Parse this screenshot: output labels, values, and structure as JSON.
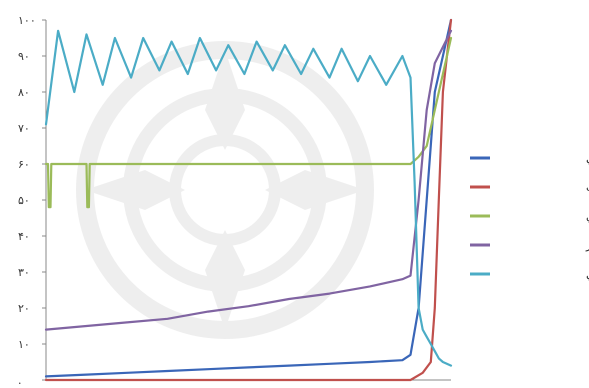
{
  "chart_data": {
    "type": "line",
    "title": "",
    "xlabel": "",
    "ylabel": "",
    "ylim": [
      0,
      100
    ],
    "y_ticks": [
      {
        "value": 0,
        "label": "."
      },
      {
        "value": 10,
        "label": "۱۰"
      },
      {
        "value": 20,
        "label": "۲۰"
      },
      {
        "value": 30,
        "label": "۳۰"
      },
      {
        "value": 40,
        "label": "۴۰"
      },
      {
        "value": 50,
        "label": "۵۰"
      },
      {
        "value": 60,
        "label": "۶۰"
      },
      {
        "value": 70,
        "label": "۷۰"
      },
      {
        "value": 80,
        "label": "۸۰"
      },
      {
        "value": 90,
        "label": "۹۰"
      },
      {
        "value": 100,
        "label": "۱۰۰"
      }
    ],
    "grid": false,
    "legend_position": "right",
    "series": [
      {
        "name": "مركزيت درجه‌اي",
        "color": "#3a66b8",
        "points": [
          [
            0,
            1
          ],
          [
            10,
            1.5
          ],
          [
            20,
            2
          ],
          [
            30,
            2.5
          ],
          [
            40,
            3
          ],
          [
            50,
            3.5
          ],
          [
            60,
            4
          ],
          [
            70,
            4.5
          ],
          [
            80,
            5
          ],
          [
            88,
            5.5
          ],
          [
            90,
            7
          ],
          [
            92,
            20
          ],
          [
            94,
            50
          ],
          [
            96,
            80
          ],
          [
            100,
            100
          ]
        ]
      },
      {
        "name": "مركزيت بينيت",
        "color": "#c0504d",
        "points": [
          [
            0,
            0
          ],
          [
            90,
            0
          ],
          [
            93,
            2
          ],
          [
            95,
            5
          ],
          [
            96,
            20
          ],
          [
            97,
            50
          ],
          [
            98,
            80
          ],
          [
            100,
            100
          ]
        ]
      },
      {
        "name": "مركزيت نزديكي",
        "color": "#9bbb59",
        "points": [
          [
            0,
            60
          ],
          [
            0.5,
            60
          ],
          [
            0.7,
            48
          ],
          [
            1.1,
            48
          ],
          [
            1.3,
            60
          ],
          [
            10,
            60
          ],
          [
            10.2,
            48
          ],
          [
            10.6,
            48
          ],
          [
            10.8,
            60
          ],
          [
            20,
            60
          ],
          [
            40,
            60
          ],
          [
            60,
            60
          ],
          [
            80,
            60
          ],
          [
            90,
            60
          ],
          [
            91,
            61
          ],
          [
            92,
            62
          ],
          [
            94,
            65
          ],
          [
            96,
            75
          ],
          [
            98,
            85
          ],
          [
            100,
            95
          ]
        ]
      },
      {
        "name": "مركزيت ويژه‌بردار",
        "color": "#8064a2",
        "points": [
          [
            0,
            14
          ],
          [
            10,
            15
          ],
          [
            20,
            16
          ],
          [
            30,
            17
          ],
          [
            40,
            19
          ],
          [
            50,
            20.5
          ],
          [
            60,
            22.5
          ],
          [
            70,
            24
          ],
          [
            80,
            26
          ],
          [
            88,
            28
          ],
          [
            90,
            29
          ],
          [
            92,
            50
          ],
          [
            94,
            75
          ],
          [
            96,
            88
          ],
          [
            100,
            97
          ]
        ]
      },
      {
        "name": "ضريب خوشه‌بندي",
        "color": "#4bacc6",
        "points": [
          [
            0,
            71
          ],
          [
            3,
            97
          ],
          [
            7,
            80
          ],
          [
            10,
            96
          ],
          [
            14,
            82
          ],
          [
            17,
            95
          ],
          [
            21,
            84
          ],
          [
            24,
            95
          ],
          [
            28,
            86
          ],
          [
            31,
            94
          ],
          [
            35,
            85
          ],
          [
            38,
            95
          ],
          [
            42,
            86
          ],
          [
            45,
            93
          ],
          [
            49,
            85
          ],
          [
            52,
            94
          ],
          [
            56,
            86
          ],
          [
            59,
            93
          ],
          [
            63,
            85
          ],
          [
            66,
            92
          ],
          [
            70,
            84
          ],
          [
            73,
            92
          ],
          [
            77,
            83
          ],
          [
            80,
            90
          ],
          [
            84,
            82
          ],
          [
            88,
            90
          ],
          [
            90,
            84
          ],
          [
            91,
            55
          ],
          [
            92,
            20
          ],
          [
            93,
            14
          ],
          [
            94,
            12
          ],
          [
            95,
            10
          ],
          [
            96,
            8
          ],
          [
            97,
            6
          ],
          [
            98,
            5
          ],
          [
            100,
            4
          ]
        ]
      }
    ]
  }
}
